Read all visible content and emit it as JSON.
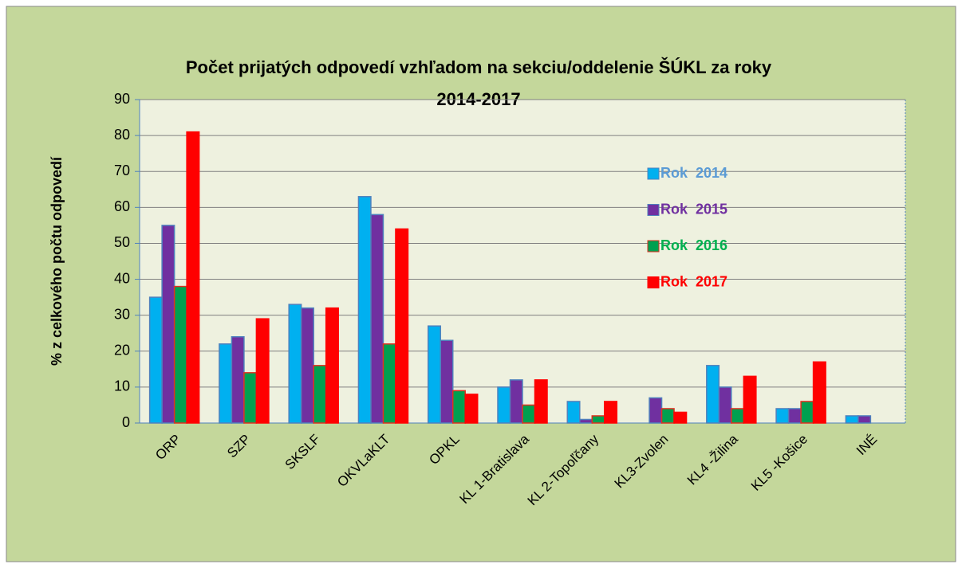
{
  "chart_data": {
    "type": "bar",
    "title": [
      "Počet prijatých odpovedí vzhľadom na sekciu/oddelenie ŠÚKL za roky",
      "2014-2017"
    ],
    "y_label": "% z celkového počtu odpovedí",
    "categories": [
      "ORP",
      "SZP",
      "SKSLF",
      "OKVLaKLT",
      "OPKL",
      "KL 1-Bratislava",
      "KL 2-Topoľčany",
      "KL3-Zvolen",
      "KL4 -Žilina",
      "KL5 -Košice",
      "INÉ"
    ],
    "series": [
      {
        "name": "Rok  2014",
        "color": "#00b0f0",
        "border": "#4f81bd",
        "label_color": "#5b9bd5",
        "values": [
          35,
          22,
          33,
          63,
          27,
          10,
          6,
          0,
          16,
          4,
          2
        ]
      },
      {
        "name": "Rok  2015",
        "color": "#7030a0",
        "border": "#4f81bd",
        "label_color": "#7030a0",
        "values": [
          55,
          24,
          32,
          58,
          23,
          12,
          1,
          7,
          10,
          4,
          2
        ]
      },
      {
        "name": "Rok  2016",
        "color": "#00a050",
        "border": "#e03020",
        "label_color": "#00b050",
        "values": [
          38,
          14,
          16,
          22,
          9,
          5,
          2,
          4,
          4,
          6,
          0
        ]
      },
      {
        "name": "Rok  2017",
        "color": "#ff0000",
        "border": "#ff0000",
        "label_color": "#ff0000",
        "values": [
          81,
          29,
          32,
          54,
          8,
          12,
          6,
          3,
          13,
          17,
          0
        ]
      }
    ],
    "ylim": [
      0,
      90
    ],
    "yticks": [
      0,
      10,
      20,
      30,
      40,
      50,
      60,
      70,
      80,
      90
    ],
    "grid": true
  }
}
